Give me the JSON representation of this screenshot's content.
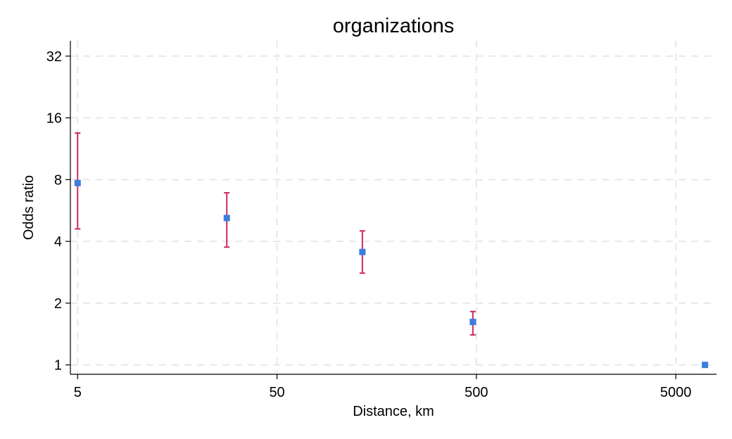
{
  "chart_data": {
    "type": "scatter",
    "title": "organizations",
    "xlabel": "Distance, km",
    "ylabel": "Odds ratio",
    "x_scale": "log10",
    "y_scale": "log2",
    "xlim": [
      4.6,
      8000
    ],
    "ylim": [
      0.9,
      38
    ],
    "x_ticks": [
      {
        "value": 5,
        "label": "5"
      },
      {
        "value": 50,
        "label": "50"
      },
      {
        "value": 500,
        "label": "500"
      },
      {
        "value": 5000,
        "label": "5000"
      }
    ],
    "y_ticks": [
      {
        "value": 1,
        "label": "1"
      },
      {
        "value": 2,
        "label": "2"
      },
      {
        "value": 4,
        "label": "4"
      },
      {
        "value": 8,
        "label": "8"
      },
      {
        "value": 16,
        "label": "16"
      },
      {
        "value": 32,
        "label": "32"
      }
    ],
    "grid": true,
    "points": [
      {
        "x": 5,
        "y": 7.7,
        "lower": 4.6,
        "upper": 13.5
      },
      {
        "x": 28,
        "y": 5.2,
        "lower": 3.75,
        "upper": 6.9
      },
      {
        "x": 134,
        "y": 3.55,
        "lower": 2.8,
        "upper": 4.5
      },
      {
        "x": 480,
        "y": 1.62,
        "lower": 1.4,
        "upper": 1.82
      },
      {
        "x": 7000,
        "y": 1.0,
        "lower": 0.98,
        "upper": 1.02
      }
    ],
    "colors": {
      "marker": "#3b7ddd",
      "ci": "#cc2a62",
      "grid": "#e8e8e8",
      "axis": "#000000"
    }
  }
}
